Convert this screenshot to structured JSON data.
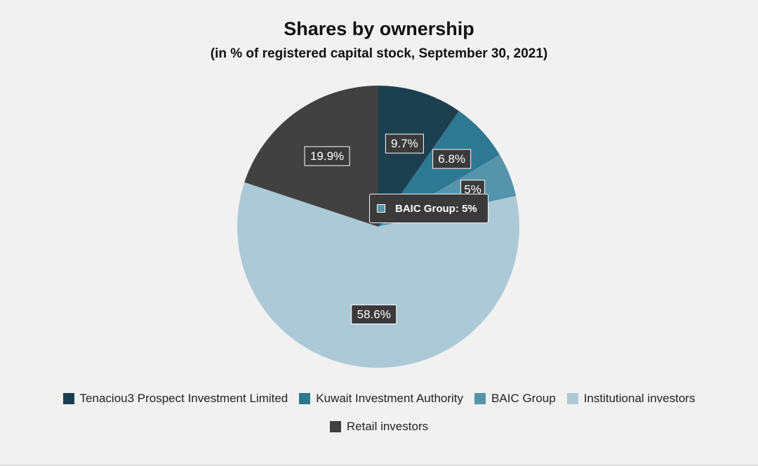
{
  "chart_data": {
    "type": "pie",
    "title": "Shares by ownership",
    "subtitle": "(in % of registered capital stock, September 30, 2021)",
    "categories": [
      "Tenaciou3 Prospect Investment Limited",
      "Kuwait Investment Authority",
      "BAIC Group",
      "Institutional investors",
      "Retail investors"
    ],
    "values": [
      9.7,
      6.8,
      5,
      58.6,
      19.9
    ],
    "labels": [
      "9.7%",
      "6.8%",
      "5%",
      "58.6%",
      "19.9%"
    ],
    "colors": [
      "#1c3f50",
      "#2e7891",
      "#5595ab",
      "#adc9d6",
      "#414141"
    ],
    "legend": "bottom-center",
    "tooltip": {
      "label": "BAIC Group: 5%",
      "color": "#5595ab"
    }
  }
}
